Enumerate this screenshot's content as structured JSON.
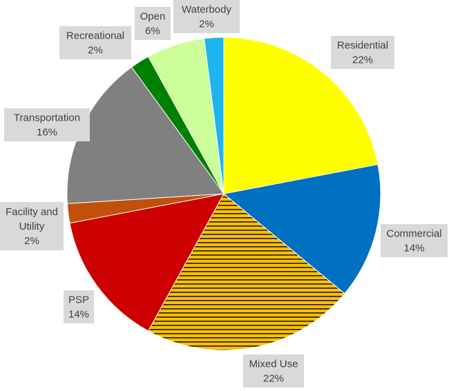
{
  "chart_data": {
    "type": "pie",
    "title": "",
    "slices": [
      {
        "label": "Residential",
        "pct_label": "22%",
        "value": 22,
        "color": "#ffff00"
      },
      {
        "label": "Commercial",
        "pct_label": "14%",
        "value": 14,
        "color": "#0070c0"
      },
      {
        "label": "Mixed Use",
        "pct_label": "22%",
        "value": 22,
        "color": "#ffc000",
        "hatch": true
      },
      {
        "label": "PSP",
        "pct_label": "14%",
        "value": 14,
        "color": "#cc0000"
      },
      {
        "label": "Facility and Utility",
        "label_lines": [
          "Facility and",
          "Utility"
        ],
        "pct_label": "2%",
        "value": 2,
        "color": "#c0500a"
      },
      {
        "label": "Transportation",
        "pct_label": "16%",
        "value": 16,
        "color": "#808080"
      },
      {
        "label": "Recreational",
        "pct_label": "2%",
        "value": 2,
        "color": "#008000"
      },
      {
        "label": "Open",
        "pct_label": "6%",
        "value": 6,
        "color": "#ccff99"
      },
      {
        "label": "Waterbody",
        "pct_label": "2%",
        "value": 2,
        "color": "#1eb4f0"
      }
    ],
    "start_angle_deg": 0,
    "direction": "clockwise",
    "legend": "none",
    "data_labels": "outside, category name and percentage"
  }
}
